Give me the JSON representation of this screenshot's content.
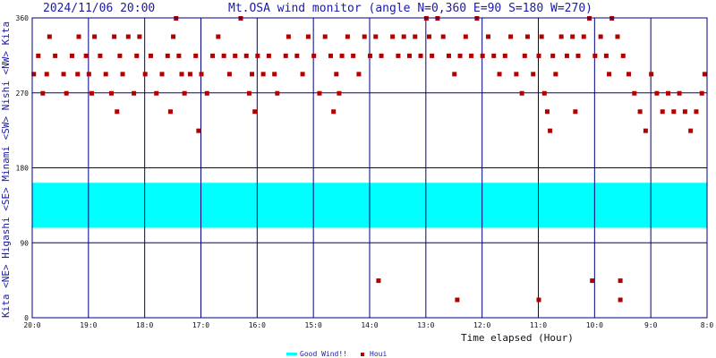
{
  "header": {
    "timestamp": "2024/11/06 20:00",
    "title": "Mt.OSA wind monitor (angle N=0,360 E=90 S=180 W=270)"
  },
  "colors": {
    "axis": "#000080",
    "points": "#b00000",
    "band": "#00ffff",
    "text": "#1a1aa6"
  },
  "chart_data": {
    "type": "scatter",
    "xlabel": "Time elapsed (Hour)",
    "ylabel": "Kita <NE> Higashi <SE> Minami <SW> Nishi <NW> Kita",
    "x_tick_labels": [
      "20:0",
      "19:0",
      "18:0",
      "17:0",
      "16:0",
      "15:0",
      "14:0",
      "13:0",
      "12:0",
      "11:0",
      "10:0",
      "9:0",
      "8:0"
    ],
    "y_tick_labels": [
      "0",
      "90",
      "180",
      "270",
      "360"
    ],
    "xlim": [
      0,
      12
    ],
    "ylim": [
      0,
      360
    ],
    "grid": true,
    "band": {
      "name": "Good Wind!!",
      "y_range": [
        108,
        162
      ]
    },
    "legend": [
      "Good Wind!!",
      "Houi"
    ],
    "series": [
      {
        "name": "Houi",
        "points": [
          [
            0.02,
            293
          ],
          [
            0.1,
            315
          ],
          [
            0.18,
            270
          ],
          [
            0.25,
            293
          ],
          [
            0.3,
            338
          ],
          [
            0.4,
            315
          ],
          [
            0.55,
            293
          ],
          [
            0.6,
            270
          ],
          [
            0.7,
            315
          ],
          [
            0.8,
            293
          ],
          [
            0.82,
            338
          ],
          [
            0.95,
            315
          ],
          [
            1.0,
            293
          ],
          [
            1.05,
            270
          ],
          [
            1.1,
            338
          ],
          [
            1.2,
            315
          ],
          [
            1.3,
            293
          ],
          [
            1.4,
            270
          ],
          [
            1.45,
            338
          ],
          [
            1.5,
            248
          ],
          [
            1.55,
            315
          ],
          [
            1.6,
            293
          ],
          [
            1.7,
            338
          ],
          [
            1.8,
            270
          ],
          [
            1.85,
            315
          ],
          [
            1.9,
            338
          ],
          [
            2.0,
            293
          ],
          [
            2.1,
            315
          ],
          [
            2.2,
            270
          ],
          [
            2.3,
            293
          ],
          [
            2.4,
            315
          ],
          [
            2.45,
            248
          ],
          [
            2.5,
            338
          ],
          [
            2.55,
            360
          ],
          [
            2.6,
            315
          ],
          [
            2.65,
            293
          ],
          [
            2.7,
            270
          ],
          [
            2.8,
            293
          ],
          [
            2.9,
            315
          ],
          [
            2.95,
            225
          ],
          [
            3.0,
            293
          ],
          [
            3.1,
            270
          ],
          [
            3.2,
            315
          ],
          [
            3.3,
            338
          ],
          [
            3.4,
            315
          ],
          [
            3.5,
            293
          ],
          [
            3.6,
            315
          ],
          [
            3.7,
            360
          ],
          [
            3.8,
            315
          ],
          [
            3.85,
            270
          ],
          [
            3.9,
            293
          ],
          [
            3.95,
            248
          ],
          [
            4.0,
            315
          ],
          [
            4.1,
            293
          ],
          [
            4.2,
            315
          ],
          [
            4.3,
            293
          ],
          [
            4.35,
            270
          ],
          [
            4.5,
            315
          ],
          [
            4.55,
            338
          ],
          [
            4.7,
            315
          ],
          [
            4.8,
            293
          ],
          [
            4.9,
            338
          ],
          [
            5.0,
            315
          ],
          [
            5.1,
            270
          ],
          [
            5.2,
            338
          ],
          [
            5.3,
            315
          ],
          [
            5.35,
            248
          ],
          [
            5.4,
            293
          ],
          [
            5.45,
            270
          ],
          [
            5.5,
            315
          ],
          [
            5.6,
            338
          ],
          [
            5.7,
            315
          ],
          [
            5.8,
            293
          ],
          [
            5.9,
            338
          ],
          [
            6.0,
            315
          ],
          [
            6.1,
            338
          ],
          [
            6.15,
            45
          ],
          [
            6.2,
            315
          ],
          [
            6.4,
            338
          ],
          [
            6.5,
            315
          ],
          [
            6.6,
            338
          ],
          [
            6.7,
            315
          ],
          [
            6.8,
            338
          ],
          [
            6.9,
            315
          ],
          [
            7.0,
            360
          ],
          [
            7.05,
            338
          ],
          [
            7.1,
            315
          ],
          [
            7.2,
            360
          ],
          [
            7.3,
            338
          ],
          [
            7.4,
            315
          ],
          [
            7.5,
            293
          ],
          [
            7.6,
            315
          ],
          [
            7.7,
            338
          ],
          [
            7.8,
            315
          ],
          [
            7.9,
            360
          ],
          [
            8.0,
            315
          ],
          [
            8.1,
            338
          ],
          [
            8.2,
            315
          ],
          [
            8.3,
            293
          ],
          [
            8.4,
            315
          ],
          [
            8.5,
            338
          ],
          [
            8.6,
            293
          ],
          [
            8.7,
            270
          ],
          [
            8.75,
            315
          ],
          [
            8.8,
            338
          ],
          [
            8.9,
            293
          ],
          [
            9.0,
            315
          ],
          [
            9.05,
            338
          ],
          [
            9.1,
            270
          ],
          [
            9.15,
            248
          ],
          [
            9.2,
            225
          ],
          [
            9.25,
            315
          ],
          [
            9.3,
            293
          ],
          [
            9.4,
            338
          ],
          [
            9.5,
            315
          ],
          [
            9.6,
            338
          ],
          [
            9.65,
            248
          ],
          [
            9.7,
            315
          ],
          [
            9.8,
            338
          ],
          [
            9.9,
            360
          ],
          [
            10.0,
            315
          ],
          [
            10.1,
            338
          ],
          [
            10.2,
            315
          ],
          [
            10.25,
            293
          ],
          [
            10.3,
            360
          ],
          [
            10.4,
            338
          ],
          [
            10.5,
            315
          ],
          [
            10.6,
            293
          ],
          [
            10.7,
            270
          ],
          [
            10.8,
            248
          ],
          [
            10.9,
            225
          ],
          [
            11.0,
            293
          ],
          [
            11.1,
            270
          ],
          [
            11.2,
            248
          ],
          [
            11.3,
            270
          ],
          [
            11.4,
            248
          ],
          [
            11.5,
            270
          ],
          [
            11.6,
            248
          ],
          [
            11.7,
            225
          ],
          [
            11.8,
            248
          ],
          [
            11.9,
            270
          ],
          [
            11.95,
            293
          ],
          [
            7.55,
            22
          ],
          [
            9.0,
            22
          ],
          [
            9.95,
            45
          ],
          [
            10.45,
            45
          ],
          [
            10.45,
            22
          ]
        ]
      }
    ]
  }
}
